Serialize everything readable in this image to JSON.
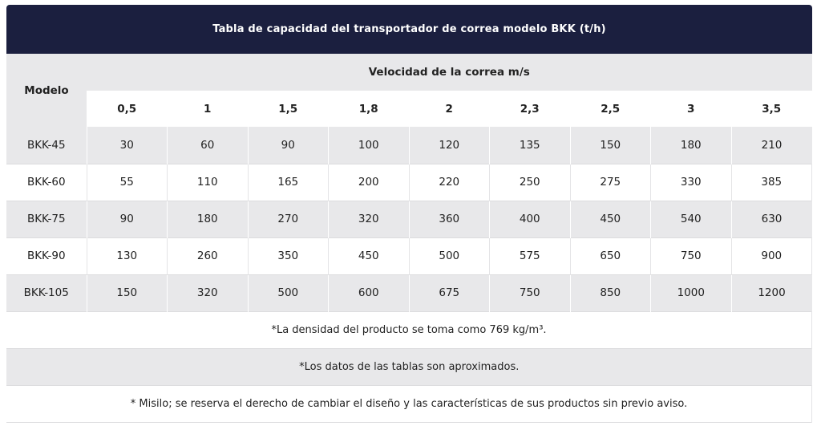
{
  "title": "Tabla de capacidad del transportador de correa modelo BKK (t/h)",
  "header": {
    "model_label": "Modelo",
    "speed_label": "Velocidad de la correa m/s",
    "speeds": [
      "0,5",
      "1",
      "1,5",
      "1,8",
      "2",
      "2,3",
      "2,5",
      "3",
      "3,5"
    ]
  },
  "rows": [
    {
      "model": "BKK-45",
      "values": [
        "30",
        "60",
        "90",
        "100",
        "120",
        "135",
        "150",
        "180",
        "210"
      ]
    },
    {
      "model": "BKK-60",
      "values": [
        "55",
        "110",
        "165",
        "200",
        "220",
        "250",
        "275",
        "330",
        "385"
      ]
    },
    {
      "model": "BKK-75",
      "values": [
        "90",
        "180",
        "270",
        "320",
        "360",
        "400",
        "450",
        "540",
        "630"
      ]
    },
    {
      "model": "BKK-90",
      "values": [
        "130",
        "260",
        "350",
        "450",
        "500",
        "575",
        "650",
        "750",
        "900"
      ]
    },
    {
      "model": "BKK-105",
      "values": [
        "150",
        "320",
        "500",
        "600",
        "675",
        "750",
        "850",
        "1000",
        "1200"
      ]
    }
  ],
  "notes": [
    "*La densidad del producto se toma como 769 kg/m³.",
    "*Los datos de las tablas son aproximados.",
    "* Misilo; se reserva el derecho de cambiar el diseño y las características de sus productos sin previo aviso."
  ]
}
